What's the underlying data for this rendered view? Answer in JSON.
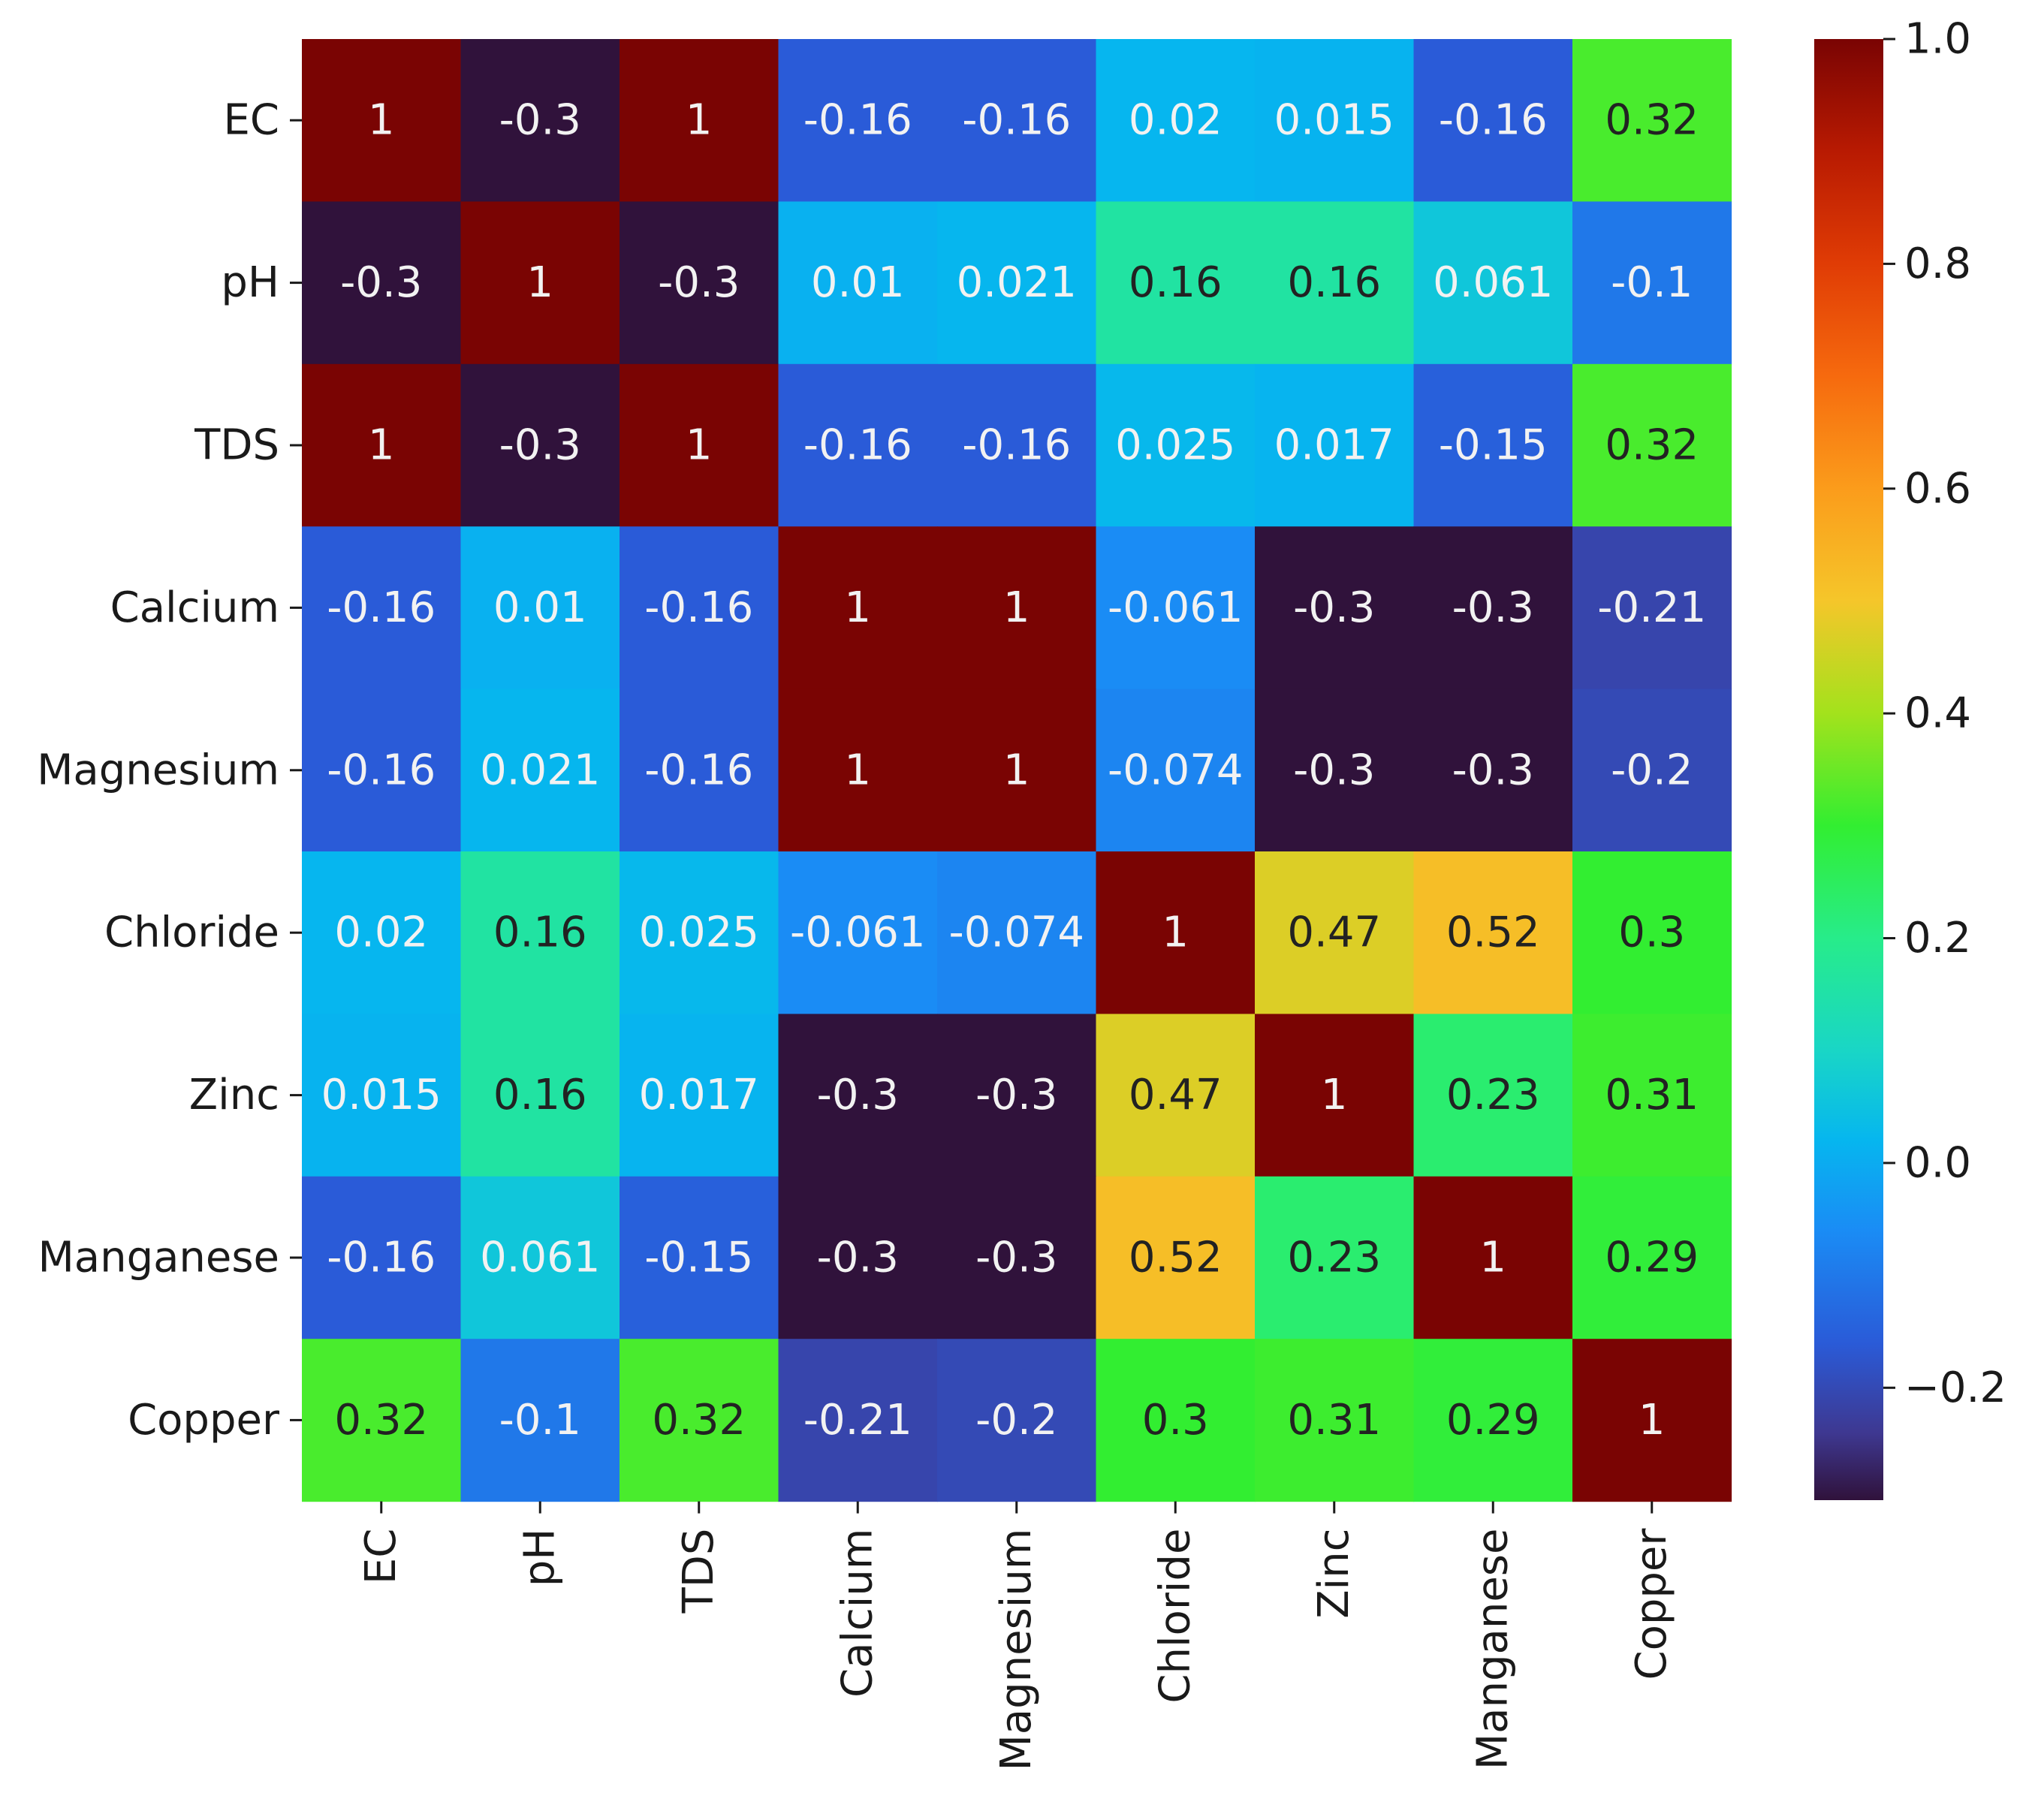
{
  "chart_data": {
    "type": "heatmap",
    "title": "",
    "row_labels": [
      "EC",
      "pH",
      "TDS",
      "Calcium",
      "Magnesium",
      "Chloride",
      "Zinc",
      "Manganese",
      "Copper"
    ],
    "col_labels": [
      "EC",
      "pH",
      "TDS",
      "Calcium",
      "Magnesium",
      "Chloride",
      "Zinc",
      "Manganese",
      "Copper"
    ],
    "values": [
      [
        1,
        -0.3,
        1,
        -0.16,
        -0.16,
        0.02,
        0.015,
        -0.16,
        0.32
      ],
      [
        -0.3,
        1,
        -0.3,
        0.01,
        0.021,
        0.16,
        0.16,
        0.061,
        -0.1
      ],
      [
        1,
        -0.3,
        1,
        -0.16,
        -0.16,
        0.025,
        0.017,
        -0.15,
        0.32
      ],
      [
        -0.16,
        0.01,
        -0.16,
        1,
        1,
        -0.061,
        -0.3,
        -0.3,
        -0.21
      ],
      [
        -0.16,
        0.021,
        -0.16,
        1,
        1,
        -0.074,
        -0.3,
        -0.3,
        -0.2
      ],
      [
        0.02,
        0.16,
        0.025,
        -0.061,
        -0.074,
        1,
        0.47,
        0.52,
        0.3
      ],
      [
        0.015,
        0.16,
        0.017,
        -0.3,
        -0.3,
        0.47,
        1,
        0.23,
        0.31
      ],
      [
        -0.16,
        0.061,
        -0.15,
        -0.3,
        -0.3,
        0.52,
        0.23,
        1,
        0.29
      ],
      [
        0.32,
        -0.1,
        0.32,
        -0.21,
        -0.2,
        0.3,
        0.31,
        0.29,
        1
      ]
    ],
    "cell_text": [
      [
        "1",
        "-0.3",
        "1",
        "-0.16",
        "-0.16",
        "0.02",
        "0.015",
        "-0.16",
        "0.32"
      ],
      [
        "-0.3",
        "1",
        "-0.3",
        "0.01",
        "0.021",
        "0.16",
        "0.16",
        "0.061",
        "-0.1"
      ],
      [
        "1",
        "-0.3",
        "1",
        "-0.16",
        "-0.16",
        "0.025",
        "0.017",
        "-0.15",
        "0.32"
      ],
      [
        "-0.16",
        "0.01",
        "-0.16",
        "1",
        "1",
        "-0.061",
        "-0.3",
        "-0.3",
        "-0.21"
      ],
      [
        "-0.16",
        "0.021",
        "-0.16",
        "1",
        "1",
        "-0.074",
        "-0.3",
        "-0.3",
        "-0.2"
      ],
      [
        "0.02",
        "0.16",
        "0.025",
        "-0.061",
        "-0.074",
        "1",
        "0.47",
        "0.52",
        "0.3"
      ],
      [
        "0.015",
        "0.16",
        "0.017",
        "-0.3",
        "-0.3",
        "0.47",
        "1",
        "0.23",
        "0.31"
      ],
      [
        "-0.16",
        "0.061",
        "-0.15",
        "-0.3",
        "-0.3",
        "0.52",
        "0.23",
        "1",
        "0.29"
      ],
      [
        "0.32",
        "-0.1",
        "0.32",
        "-0.21",
        "-0.2",
        "0.3",
        "0.31",
        "0.29",
        "1"
      ]
    ],
    "colormap": "turbo",
    "vmin": -0.3,
    "vmax": 1.0,
    "colorbar_ticks": [
      1.0,
      0.8,
      0.6,
      0.4,
      0.2,
      0.0,
      -0.2
    ],
    "colorbar_tick_labels": [
      "1.0",
      "0.8",
      "0.6",
      "0.4",
      "0.2",
      "0.0",
      "−0.2"
    ],
    "colorbar_stops": [
      {
        "v": -0.3,
        "color": "#30123b"
      },
      {
        "v": -0.24,
        "color": "#3e3891"
      },
      {
        "v": -0.16,
        "color": "#2a5bd8"
      },
      {
        "v": -0.06,
        "color": "#1a8cf5"
      },
      {
        "v": 0.02,
        "color": "#06b6ef"
      },
      {
        "v": 0.1,
        "color": "#19d6c6"
      },
      {
        "v": 0.2,
        "color": "#27ec8a"
      },
      {
        "v": 0.3,
        "color": "#32ee31"
      },
      {
        "v": 0.4,
        "color": "#a3e21c"
      },
      {
        "v": 0.5,
        "color": "#f5c62a"
      },
      {
        "v": 0.6,
        "color": "#fb9c1b"
      },
      {
        "v": 0.7,
        "color": "#f66a0e"
      },
      {
        "v": 0.8,
        "color": "#e03c05"
      },
      {
        "v": 0.9,
        "color": "#b81a02"
      },
      {
        "v": 1.0,
        "color": "#7a0403"
      }
    ],
    "dark_text_color": "#222222",
    "light_text_color": "#f2f2f2"
  }
}
